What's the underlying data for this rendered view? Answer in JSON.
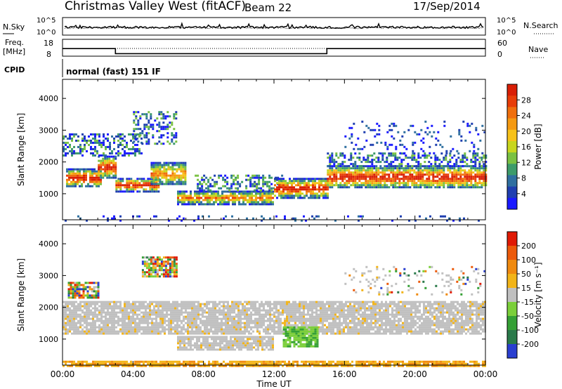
{
  "header": {
    "station": "Christmas Valley West (fitACF)",
    "beam": "Beam 22",
    "date": "17/Sep/2014"
  },
  "top_panels": {
    "nsky_label": "N.Sky",
    "nsearch_label": "N.Search",
    "noise_ticks_left": [
      "10^5",
      "10^0"
    ],
    "noise_ticks_right": [
      "10^5",
      "10^0"
    ],
    "freq_label_line1": "Freq.",
    "freq_label_line2": "[MHz]",
    "freq_ticks": [
      "18",
      "8"
    ],
    "nave_label": "Nave",
    "nave_ticks": [
      "60",
      "0"
    ],
    "cpid_label": "CPID",
    "cpid_text": "normal (fast) 151 IF"
  },
  "chart_data": [
    {
      "type": "heatmap",
      "name": "power",
      "ylabel": "Slant Range [km]",
      "yticks": [
        1000,
        2000,
        3000,
        4000
      ],
      "ylim": [
        180,
        4600
      ],
      "xlim": [
        0,
        24
      ],
      "colorbar": {
        "label": "Power [dB]",
        "ticks": [
          "28",
          "24",
          "20",
          "16",
          "12",
          "8",
          "4"
        ],
        "colors": [
          "#1a1aff",
          "#1f3fb0",
          "#2f6fa0",
          "#3d9b6a",
          "#7ac142",
          "#c8d61e",
          "#f7c21a",
          "#f59a12",
          "#f06f0d",
          "#e83d08",
          "#d91e05"
        ]
      },
      "regions": [
        {
          "t0": 0.2,
          "t1": 2.2,
          "r0": 1250,
          "r1": 1800,
          "band": "strong"
        },
        {
          "t0": 2.0,
          "t1": 3.0,
          "r0": 1500,
          "r1": 2200,
          "band": "strong"
        },
        {
          "t0": 3.0,
          "t1": 5.5,
          "r0": 1100,
          "r1": 1500,
          "band": "strong"
        },
        {
          "t0": 5.0,
          "t1": 7.0,
          "r0": 1300,
          "r1": 2000,
          "band": "medium"
        },
        {
          "t0": 6.5,
          "t1": 12.0,
          "r0": 700,
          "r1": 1100,
          "band": "medium"
        },
        {
          "t0": 7.5,
          "t1": 12.5,
          "r0": 1100,
          "r1": 1600,
          "band": "weak"
        },
        {
          "t0": 12.0,
          "t1": 15.0,
          "r0": 900,
          "r1": 1500,
          "band": "strong"
        },
        {
          "t0": 15.0,
          "t1": 24.0,
          "r0": 1200,
          "r1": 1900,
          "band": "strong"
        },
        {
          "t0": 15.0,
          "t1": 24.0,
          "r0": 1900,
          "r1": 2300,
          "band": "weak"
        },
        {
          "t0": 0.0,
          "t1": 4.5,
          "r0": 2200,
          "r1": 2900,
          "band": "weak"
        },
        {
          "t0": 4.0,
          "t1": 6.5,
          "r0": 2600,
          "r1": 3600,
          "band": "weak"
        },
        {
          "t0": 16.0,
          "t1": 24.0,
          "r0": 2300,
          "r1": 3300,
          "band": "sparse"
        },
        {
          "t0": 0.0,
          "t1": 24.0,
          "r0": 180,
          "r1": 320,
          "band": "sparse"
        }
      ]
    },
    {
      "type": "heatmap",
      "name": "velocity",
      "ylabel": "Slant Range [km]",
      "xlabel": "Time UT",
      "yticks": [
        1000,
        2000,
        3000,
        4000
      ],
      "ylim": [
        180,
        4600
      ],
      "xlim": [
        0,
        24
      ],
      "xticks": [
        "00:00",
        "04:00",
        "08:00",
        "12:00",
        "16:00",
        "20:00",
        "00:00"
      ],
      "colorbar": {
        "label": "Velocity [m s⁻¹]",
        "ticks": [
          "200",
          "100",
          "50",
          "15",
          "-15",
          "-50",
          "-100",
          "-200"
        ],
        "colors": [
          "#2a3fd0",
          "#2a7a4a",
          "#35a035",
          "#7bcf3a",
          "#c0c0c0",
          "#f2b418",
          "#f08a10",
          "#ec5a0a",
          "#e01a05"
        ]
      },
      "regions": [
        {
          "t0": 0.0,
          "t1": 24.0,
          "r0": 1200,
          "r1": 2200,
          "band": "gray"
        },
        {
          "t0": 6.5,
          "t1": 12.0,
          "r0": 700,
          "r1": 1100,
          "band": "gray"
        },
        {
          "t0": 12.5,
          "t1": 14.5,
          "r0": 800,
          "r1": 1400,
          "band": "green"
        },
        {
          "t0": 0.0,
          "t1": 24.0,
          "r0": 180,
          "r1": 320,
          "band": "orange"
        },
        {
          "t0": 0.3,
          "t1": 2.0,
          "r0": 2300,
          "r1": 2800,
          "band": "mixed"
        },
        {
          "t0": 4.5,
          "t1": 6.5,
          "r0": 3000,
          "r1": 3600,
          "band": "mixed"
        },
        {
          "t0": 16.0,
          "t1": 24.0,
          "r0": 2400,
          "r1": 3300,
          "band": "sparse"
        }
      ]
    }
  ],
  "noise": {
    "nsky_level": 0.45,
    "nsearch_level": 0.45
  },
  "freq_series": [
    {
      "t0": 0.0,
      "t1": 3.0,
      "mhz": 12.5
    },
    {
      "t0": 3.0,
      "t1": 15.0,
      "mhz": 9.5
    },
    {
      "t0": 15.0,
      "t1": 24.0,
      "mhz": 12.5
    }
  ]
}
